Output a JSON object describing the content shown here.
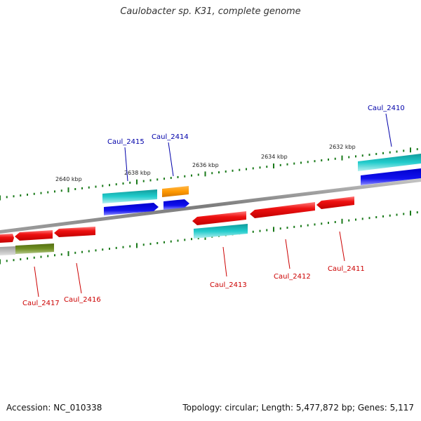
{
  "title": "Caulobacter sp. K31, complete genome",
  "footer": {
    "accession": "Accession: NC_010338",
    "summary": "Topology: circular; Length: 5,477,872 bp; Genes: 5,117"
  },
  "colors": {
    "backbone": "#8c8c8c",
    "tick": "#1a7a1a",
    "label_plus": "#0000aa",
    "label_minus": "#cc0000",
    "red": "#ee1111",
    "cyan": "#22cccc",
    "blue": "#1111ee",
    "orange": "#ff9900",
    "olive": "#6f8f22",
    "gray": "#bbbbbb"
  },
  "kbp_labels": [
    "2640 kbp",
    "2638 kbp",
    "2636 kbp",
    "2634 kbp",
    "2632 kbp"
  ],
  "genes": [
    {
      "name": "Caul_2410",
      "strand": "+"
    },
    {
      "name": "Caul_2411",
      "strand": "-"
    },
    {
      "name": "Caul_2412",
      "strand": "-"
    },
    {
      "name": "Caul_2413",
      "strand": "-"
    },
    {
      "name": "Caul_2414",
      "strand": "+"
    },
    {
      "name": "Caul_2415",
      "strand": "+"
    },
    {
      "name": "Caul_2416",
      "strand": "-"
    },
    {
      "name": "Caul_2417",
      "strand": "-"
    }
  ]
}
